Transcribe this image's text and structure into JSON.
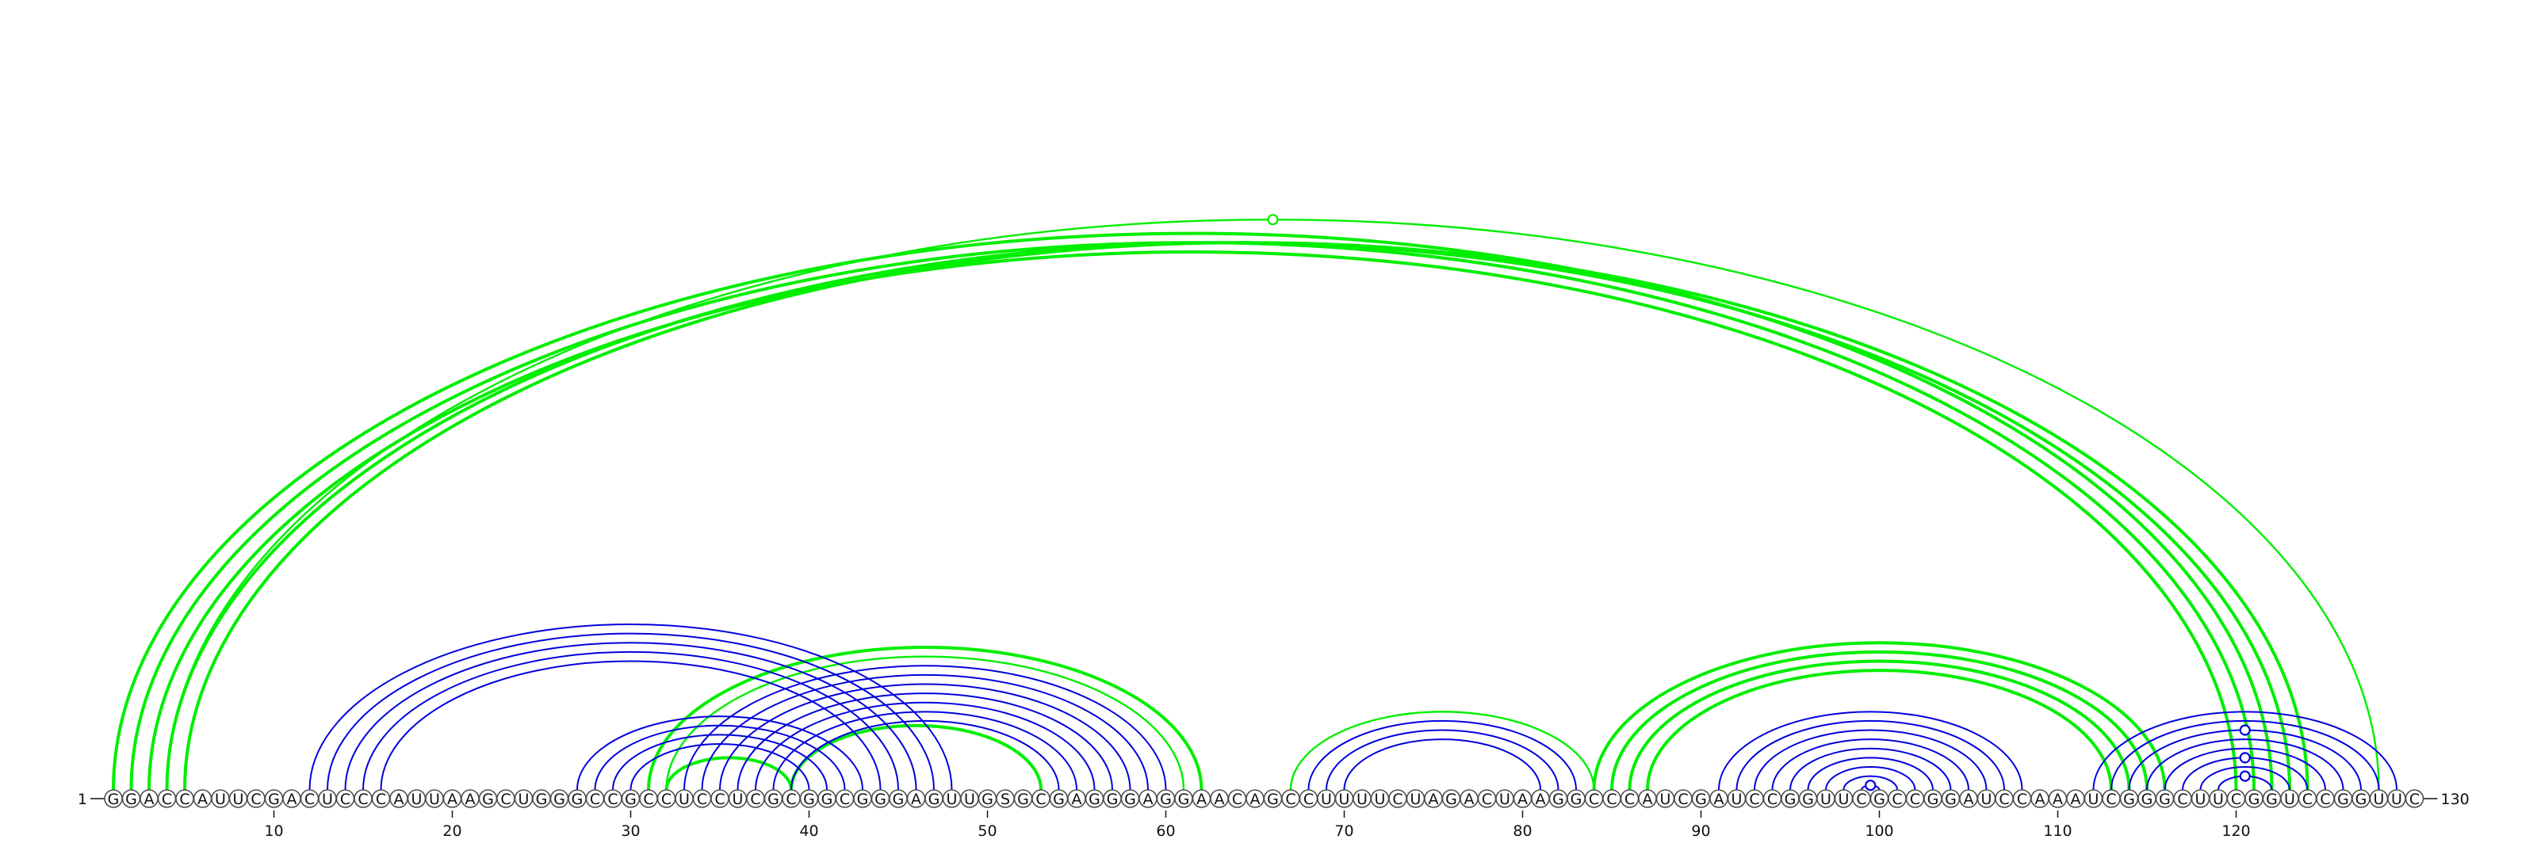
{
  "chart_data": {
    "type": "arc-diagram",
    "sequence": "GGACCAUUCGACUCCCAUUAAGCUGGGCCGCCUCCUCGCGGCGGGAGUUGSGCGAGGGAGGAACAGCCUUUUCUAGACUAAGGCCCAUCGAUCCGGUUCGCCGGAUCCAAAUCGGGCUUCGGUCCGGUUC",
    "start_label": "1",
    "end_label": "130",
    "ticks": [
      10,
      20,
      30,
      40,
      50,
      60,
      70,
      80,
      90,
      100,
      110,
      120
    ],
    "colors": {
      "blue": "#0000dd",
      "green": "#00ee00"
    },
    "arcs": [
      {
        "color": "green",
        "i": 1,
        "j": 122,
        "width": 4
      },
      {
        "color": "green",
        "i": 2,
        "j": 121,
        "width": 4
      },
      {
        "color": "green",
        "i": 3,
        "j": 120,
        "width": 4
      },
      {
        "color": "green",
        "i": 4,
        "j": 128,
        "width": 2.4,
        "marker": true
      },
      {
        "color": "green",
        "i": 4,
        "j": 123,
        "width": 4
      },
      {
        "color": "green",
        "i": 5,
        "j": 124,
        "width": 4
      },
      {
        "color": "green",
        "i": 31,
        "j": 62,
        "width": 4
      },
      {
        "color": "green",
        "i": 32,
        "j": 61,
        "width": 2.4
      },
      {
        "color": "green",
        "i": 32,
        "j": 39,
        "width": 4
      },
      {
        "color": "green",
        "i": 39,
        "j": 53,
        "width": 4
      },
      {
        "color": "green",
        "i": 67,
        "j": 84,
        "width": 2.4
      },
      {
        "color": "green",
        "i": 84,
        "j": 116,
        "width": 4
      },
      {
        "color": "green",
        "i": 85,
        "j": 115,
        "width": 4
      },
      {
        "color": "green",
        "i": 86,
        "j": 114,
        "width": 4
      },
      {
        "color": "green",
        "i": 87,
        "j": 113,
        "width": 4
      },
      {
        "color": "blue",
        "i": 12,
        "j": 48,
        "width": 2
      },
      {
        "color": "blue",
        "i": 13,
        "j": 47,
        "width": 2
      },
      {
        "color": "blue",
        "i": 14,
        "j": 46,
        "width": 2
      },
      {
        "color": "blue",
        "i": 15,
        "j": 45,
        "width": 2
      },
      {
        "color": "blue",
        "i": 16,
        "j": 44,
        "width": 2
      },
      {
        "color": "blue",
        "i": 27,
        "j": 43,
        "width": 2
      },
      {
        "color": "blue",
        "i": 28,
        "j": 42,
        "width": 2
      },
      {
        "color": "blue",
        "i": 29,
        "j": 41,
        "width": 2
      },
      {
        "color": "blue",
        "i": 30,
        "j": 40,
        "width": 2
      },
      {
        "color": "blue",
        "i": 33,
        "j": 60,
        "width": 2
      },
      {
        "color": "blue",
        "i": 34,
        "j": 59,
        "width": 2
      },
      {
        "color": "blue",
        "i": 35,
        "j": 58,
        "width": 2
      },
      {
        "color": "blue",
        "i": 36,
        "j": 57,
        "width": 2
      },
      {
        "color": "blue",
        "i": 37,
        "j": 56,
        "width": 2
      },
      {
        "color": "blue",
        "i": 38,
        "j": 55,
        "width": 2
      },
      {
        "color": "blue",
        "i": 39,
        "j": 54,
        "width": 2
      },
      {
        "color": "blue",
        "i": 68,
        "j": 83,
        "width": 2
      },
      {
        "color": "blue",
        "i": 69,
        "j": 82,
        "width": 2
      },
      {
        "color": "blue",
        "i": 70,
        "j": 81,
        "width": 2
      },
      {
        "color": "blue",
        "i": 91,
        "j": 108,
        "width": 2
      },
      {
        "color": "blue",
        "i": 92,
        "j": 107,
        "width": 2
      },
      {
        "color": "blue",
        "i": 93,
        "j": 106,
        "width": 2
      },
      {
        "color": "blue",
        "i": 94,
        "j": 105,
        "width": 2
      },
      {
        "color": "blue",
        "i": 95,
        "j": 104,
        "width": 2
      },
      {
        "color": "blue",
        "i": 96,
        "j": 103,
        "width": 2
      },
      {
        "color": "blue",
        "i": 97,
        "j": 102,
        "width": 2
      },
      {
        "color": "blue",
        "i": 98,
        "j": 101,
        "width": 2
      },
      {
        "color": "blue",
        "i": 99,
        "j": 100,
        "width": 2,
        "marker": true
      },
      {
        "color": "blue",
        "i": 112,
        "j": 129,
        "width": 2
      },
      {
        "color": "blue",
        "i": 113,
        "j": 128,
        "width": 2
      },
      {
        "color": "blue",
        "i": 114,
        "j": 127,
        "width": 2,
        "marker": true
      },
      {
        "color": "blue",
        "i": 115,
        "j": 126,
        "width": 2
      },
      {
        "color": "blue",
        "i": 116,
        "j": 125,
        "width": 2
      },
      {
        "color": "blue",
        "i": 117,
        "j": 124,
        "width": 2,
        "marker": true
      },
      {
        "color": "blue",
        "i": 118,
        "j": 123,
        "width": 2
      },
      {
        "color": "blue",
        "i": 119,
        "j": 122,
        "width": 2,
        "marker": true
      }
    ]
  }
}
